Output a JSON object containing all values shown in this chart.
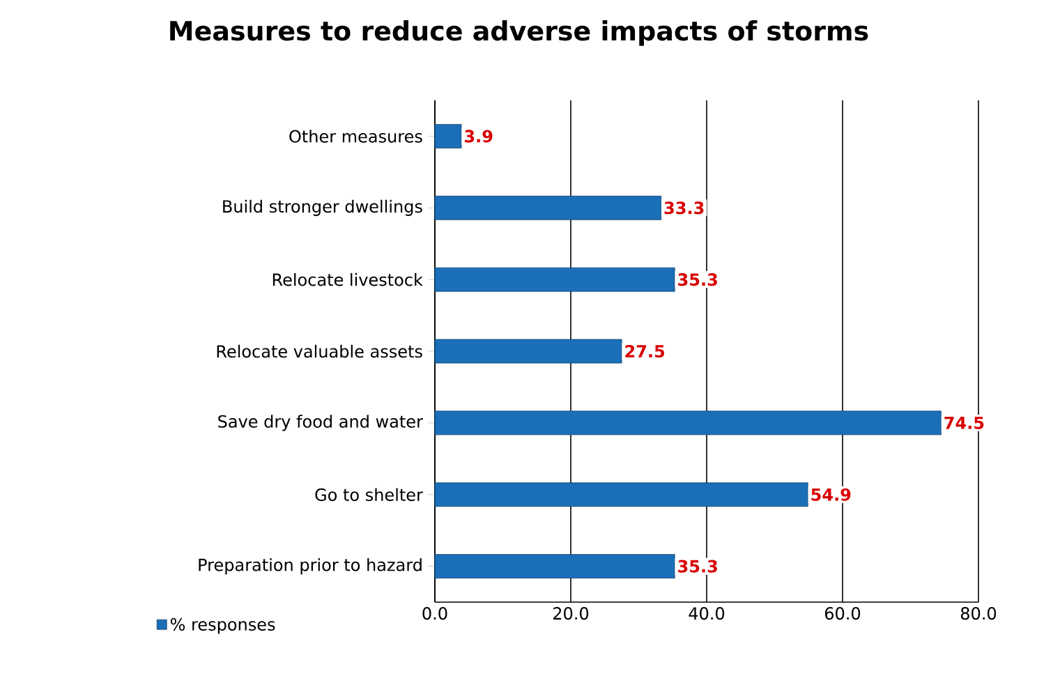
{
  "chart_data": {
    "type": "bar",
    "orientation": "horizontal",
    "title": "Measures to reduce adverse impacts of storms",
    "categories": [
      "Other measures",
      "Build stronger dwellings",
      "Relocate livestock",
      "Relocate valuable assets",
      "Save dry food and water",
      "Go to shelter",
      "Preparation prior to hazard"
    ],
    "series": [
      {
        "name": "% responses",
        "color": "#1a6fb8",
        "values": [
          3.9,
          33.3,
          35.3,
          27.5,
          74.5,
          54.9,
          35.3
        ]
      }
    ],
    "xlim": [
      0,
      80
    ],
    "xticks": [
      {
        "value": 0,
        "label": "0.0"
      },
      {
        "value": 20,
        "label": "20.0"
      },
      {
        "value": 40,
        "label": "40.0"
      },
      {
        "value": 60,
        "label": "60.0"
      },
      {
        "value": 80,
        "label": "80.0"
      }
    ],
    "grid": "x",
    "legend": "bottom left",
    "data_labels": true
  }
}
